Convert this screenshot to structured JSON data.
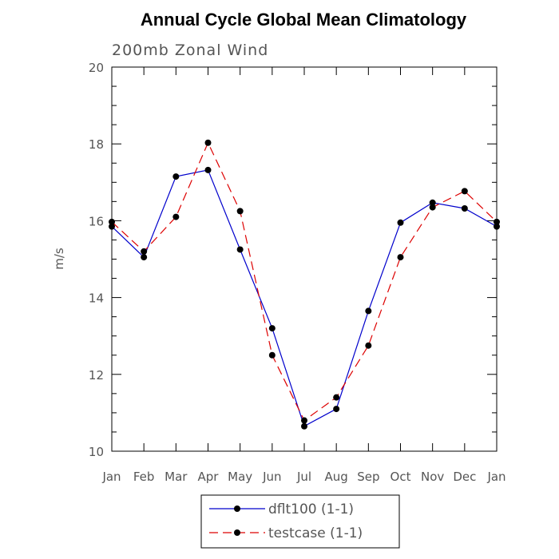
{
  "chart_data": {
    "type": "line",
    "title": "Annual Cycle Global Mean Climatology",
    "subtitle": "200mb Zonal Wind",
    "xlabel": "",
    "ylabel": "m/s",
    "categories": [
      "Jan",
      "Feb",
      "Mar",
      "Apr",
      "May",
      "Jun",
      "Jul",
      "Aug",
      "Sep",
      "Oct",
      "Nov",
      "Dec",
      "Jan"
    ],
    "ylim": [
      10,
      20
    ],
    "yticks": [
      "10",
      "12",
      "14",
      "16",
      "18",
      "20"
    ],
    "grid": false,
    "legend_position": "bottom",
    "series": [
      {
        "name": "dflt100 (1-1)",
        "color": "#0000cc",
        "dash": "solid",
        "marker": "filled-circle",
        "values": [
          15.85,
          15.05,
          17.15,
          17.32,
          15.25,
          13.2,
          10.65,
          11.1,
          13.65,
          15.95,
          16.47,
          16.32,
          15.85
        ]
      },
      {
        "name": "testcase (1-1)",
        "color": "#dd0000",
        "dash": "dashed",
        "marker": "filled-circle",
        "values": [
          15.97,
          15.2,
          16.1,
          18.03,
          16.25,
          12.5,
          10.8,
          11.4,
          12.75,
          15.05,
          16.35,
          16.77,
          15.97
        ]
      }
    ]
  }
}
